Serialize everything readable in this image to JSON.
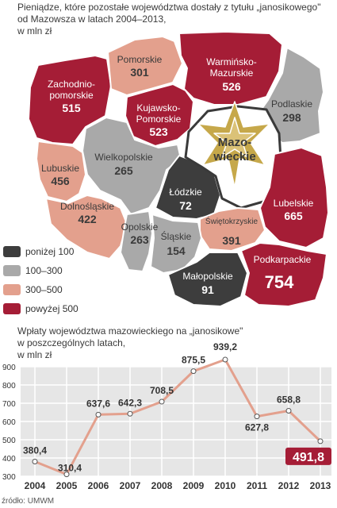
{
  "map": {
    "title_line1": "Pieniądze, które pozostałe województwa dostały z tytułu „janosikowego\"",
    "title_line2": "od Mazowsza w latach 2004–2013,",
    "title_line3": "w mln zł",
    "center_label_1": "Mazo-",
    "center_label_2": "wieckie",
    "colors": {
      "low": "#3d3d3d",
      "mid": "#a9a9a9",
      "high": "#e3a08d",
      "top": "#a51d36",
      "gold": "#c6a84a"
    },
    "legend": [
      {
        "label": "poniżej 100",
        "color": "#3d3d3d"
      },
      {
        "label": "100–300",
        "color": "#a9a9a9"
      },
      {
        "label": "300–500",
        "color": "#e3a08d"
      },
      {
        "label": "powyżej 500",
        "color": "#a51d36"
      }
    ],
    "regions": [
      {
        "name1": "Zachodnio-",
        "name2": "pomorskie",
        "value": "515"
      },
      {
        "name1": "Pomorskie",
        "name2": "",
        "value": "301"
      },
      {
        "name1": "Warmińsko-",
        "name2": "Mazurskie",
        "value": "526"
      },
      {
        "name1": "Kujawsko-",
        "name2": "Pomorskie",
        "value": "523"
      },
      {
        "name1": "Podlaskie",
        "name2": "",
        "value": "298"
      },
      {
        "name1": "Wielkopolskie",
        "name2": "",
        "value": "265"
      },
      {
        "name1": "Lubuskie",
        "name2": "",
        "value": "456"
      },
      {
        "name1": "Łódzkie",
        "name2": "",
        "value": "72"
      },
      {
        "name1": "Dolnośląskie",
        "name2": "",
        "value": "422"
      },
      {
        "name1": "Lubelskie",
        "name2": "",
        "value": "665"
      },
      {
        "name1": "Świętokrzyskie",
        "name2": "",
        "value": "391"
      },
      {
        "name1": "Opolskie",
        "name2": "",
        "value": "263"
      },
      {
        "name1": "Śląskie",
        "name2": "",
        "value": "154"
      },
      {
        "name1": "Małopolskie",
        "name2": "",
        "value": "91"
      },
      {
        "name1": "Podkarpackie",
        "name2": "",
        "value": "754"
      }
    ]
  },
  "chart_data": {
    "type": "line",
    "title": "Wpłaty województwa mazowieckiego na „janosikowe\" w poszczególnych latach, w mln zł",
    "title_line1": "Wpłaty województwa mazowieckiego na „janosikowe\"",
    "title_line2": "w poszczególnych latach,",
    "title_line3": "w mln zł",
    "x": [
      "2004",
      "2005",
      "2006",
      "2007",
      "2008",
      "2009",
      "2010",
      "2011",
      "2012",
      "2013"
    ],
    "values": [
      380.4,
      310.4,
      637.6,
      642.3,
      708.5,
      875.5,
      939.2,
      627.8,
      658.8,
      491.8
    ],
    "labels": [
      "380,4",
      "310,4",
      "637,6",
      "642,3",
      "708,5",
      "875,5",
      "939,2",
      "627,8",
      "658,8",
      "491,8"
    ],
    "yticks": [
      "300",
      "400",
      "500",
      "600",
      "700",
      "800",
      "900"
    ],
    "ylim": [
      300,
      900
    ],
    "grid": true,
    "line_color": "#e3a08d",
    "highlight_color": "#a51d36"
  },
  "source": "źródło: UMWM"
}
